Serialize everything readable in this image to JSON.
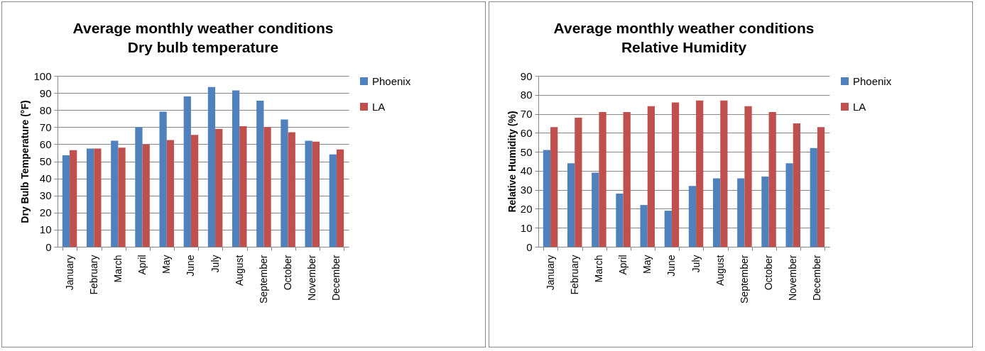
{
  "chart_data": [
    {
      "type": "bar",
      "title": "Average monthly weather conditions",
      "subtitle": "Dry bulb temperature",
      "ylabel": "Dry Bulb Temperature (°F)",
      "categories": [
        "January",
        "February",
        "March",
        "April",
        "May",
        "June",
        "July",
        "August",
        "September",
        "October",
        "November",
        "December"
      ],
      "series": [
        {
          "name": "Phoenix",
          "color": "#4f81bd",
          "values": [
            53.5,
            57.5,
            62,
            70,
            79,
            88,
            93.5,
            91.5,
            85.5,
            74.5,
            62,
            54
          ]
        },
        {
          "name": "LA",
          "color": "#c0504d",
          "values": [
            56.5,
            57.5,
            58,
            60,
            62.5,
            65.5,
            69,
            70.5,
            70,
            67,
            61.5,
            57
          ]
        }
      ],
      "ylim": [
        0,
        100
      ],
      "yticks": [
        0,
        10,
        20,
        30,
        40,
        50,
        60,
        70,
        80,
        90,
        100
      ],
      "grid": "y",
      "legend": "right"
    },
    {
      "type": "bar",
      "title": "Average monthly weather conditions",
      "subtitle": "Relative Humidity",
      "ylabel": "Relative Humidity (%)",
      "categories": [
        "January",
        "February",
        "March",
        "April",
        "May",
        "June",
        "July",
        "August",
        "September",
        "October",
        "November",
        "December"
      ],
      "series": [
        {
          "name": "Phoenix",
          "color": "#4f81bd",
          "values": [
            51,
            44,
            39,
            28,
            22,
            19,
            32,
            36,
            36,
            37,
            44,
            52
          ]
        },
        {
          "name": "LA",
          "color": "#c0504d",
          "values": [
            63,
            68,
            71,
            71,
            74,
            76,
            77,
            77,
            74,
            71,
            65,
            63
          ]
        }
      ],
      "ylim": [
        0,
        90
      ],
      "yticks": [
        0,
        10,
        20,
        30,
        40,
        50,
        60,
        70,
        80,
        90
      ],
      "grid": "y",
      "legend": "right"
    }
  ]
}
